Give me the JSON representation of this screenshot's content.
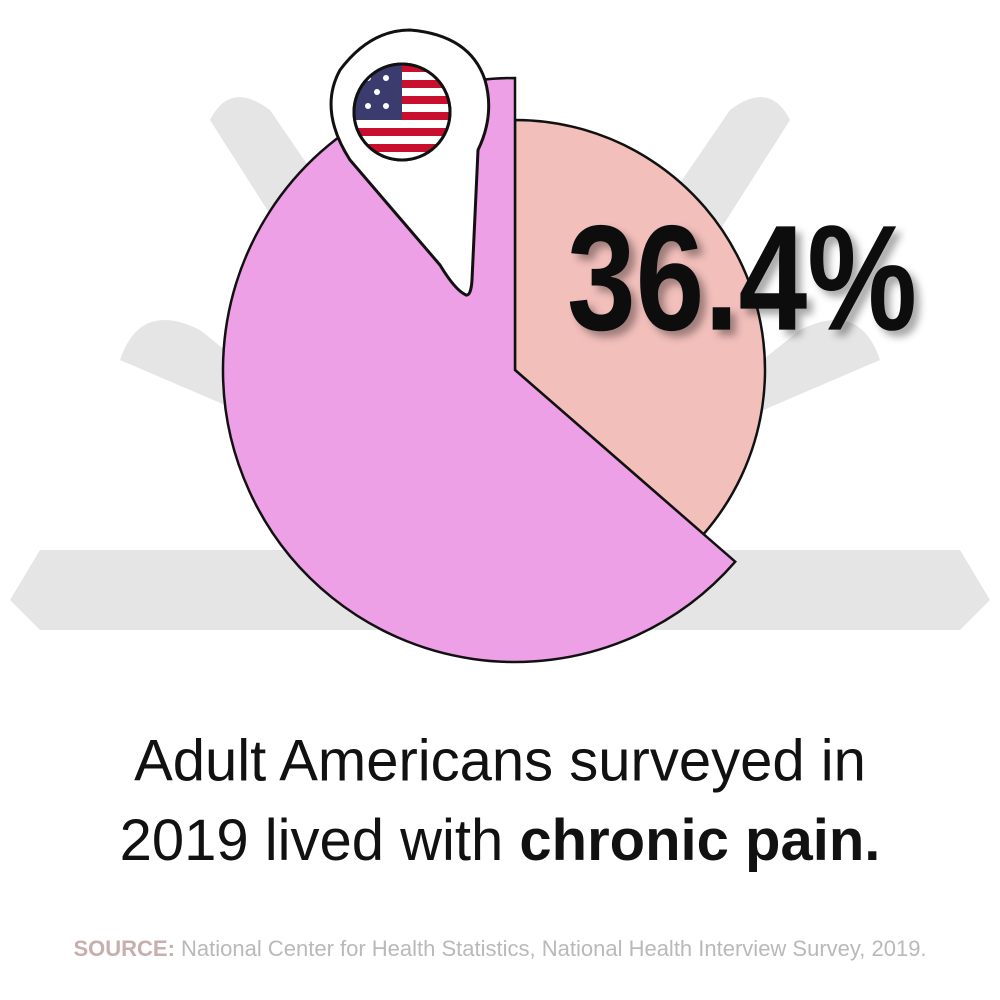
{
  "chart_data": {
    "type": "pie",
    "values": [
      36.4,
      63.6
    ],
    "value_labels": [
      "36.4%",
      null
    ],
    "colors": [
      "#f2bfbb",
      "#eda0e6"
    ],
    "caption": {
      "line1": "Adult Americans surveyed in",
      "line2": "2019 lived with",
      "emphasis": "chronic pain."
    },
    "source": {
      "label": "SOURCE:",
      "text": "National Center for Health Statistics, National Health Interview Survey, 2019."
    }
  }
}
